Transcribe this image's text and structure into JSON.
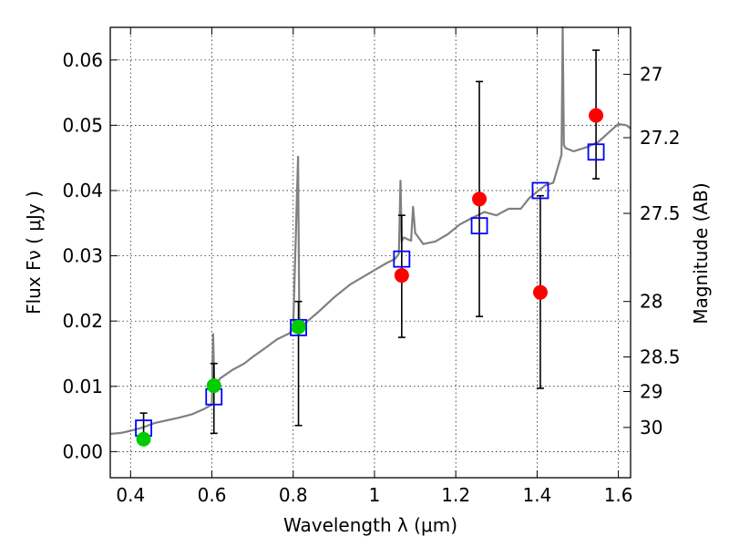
{
  "chart_data": {
    "type": "scatter",
    "xlabel": "Wavelength  λ (μm)",
    "ylabel": "Flux  Fν  ( μJy )",
    "y2label": "Magnitude (AB)",
    "xlim": [
      0.35,
      1.63
    ],
    "ylim": [
      -0.004,
      0.065
    ],
    "grid": true,
    "x_ticks": [
      0.4,
      0.6,
      0.8,
      1.0,
      1.2,
      1.4,
      1.6
    ],
    "x_tick_labels": [
      "0.4",
      "0.6",
      "0.8",
      "1",
      "1.2",
      "1.4",
      "1.6"
    ],
    "y_ticks": [
      0.0,
      0.01,
      0.02,
      0.03,
      0.04,
      0.05,
      0.06
    ],
    "y_tick_labels": [
      "0.00",
      "0.01",
      "0.02",
      "0.03",
      "0.04",
      "0.05",
      "0.06"
    ],
    "magnitude_ticks": [
      {
        "label": "27",
        "flux": 0.0578
      },
      {
        "label": "27.2",
        "flux": 0.0481
      },
      {
        "label": "27.5",
        "flux": 0.0365
      },
      {
        "label": "28",
        "flux": 0.023
      },
      {
        "label": "28.5",
        "flux": 0.0145
      },
      {
        "label": "29",
        "flux": 0.0092
      },
      {
        "label": "30",
        "flux": 0.0037
      }
    ],
    "series": [
      {
        "marker": "line",
        "color": "#808080",
        "x": [
          0.35,
          0.38,
          0.4,
          0.43,
          0.46,
          0.49,
          0.52,
          0.55,
          0.58,
          0.6,
          0.603,
          0.606,
          0.62,
          0.65,
          0.68,
          0.7,
          0.73,
          0.76,
          0.79,
          0.8,
          0.812,
          0.815,
          0.818,
          0.83,
          0.86,
          0.9,
          0.94,
          0.97,
          1.0,
          1.03,
          1.05,
          1.06,
          1.064,
          1.067,
          1.072,
          1.09,
          1.095,
          1.1,
          1.12,
          1.15,
          1.18,
          1.21,
          1.24,
          1.27,
          1.3,
          1.33,
          1.36,
          1.38,
          1.4,
          1.42,
          1.44,
          1.46,
          1.463,
          1.466,
          1.47,
          1.49,
          1.52,
          1.55,
          1.58,
          1.6,
          1.62,
          1.63
        ],
        "y": [
          0.0027,
          0.0029,
          0.0032,
          0.0037,
          0.0044,
          0.0048,
          0.0052,
          0.0057,
          0.0065,
          0.0072,
          0.018,
          0.0095,
          0.0112,
          0.0125,
          0.0135,
          0.0145,
          0.0158,
          0.0172,
          0.0181,
          0.0188,
          0.0452,
          0.0205,
          0.0195,
          0.0197,
          0.0213,
          0.0236,
          0.0256,
          0.0267,
          0.0278,
          0.0289,
          0.0295,
          0.0303,
          0.0415,
          0.0322,
          0.0328,
          0.0323,
          0.0375,
          0.0335,
          0.0318,
          0.0322,
          0.0333,
          0.0348,
          0.0358,
          0.0367,
          0.0362,
          0.0372,
          0.0372,
          0.0388,
          0.0398,
          0.0408,
          0.0412,
          0.0455,
          0.065,
          0.047,
          0.0465,
          0.046,
          0.0466,
          0.0474,
          0.0491,
          0.0502,
          0.05,
          0.0495
        ]
      },
      {
        "marker": "open-square",
        "color": "#0000ff",
        "x": [
          0.432,
          0.605,
          0.813,
          1.067,
          1.258,
          1.408,
          1.545
        ],
        "y": [
          0.0036,
          0.0084,
          0.019,
          0.0295,
          0.0346,
          0.04,
          0.0459
        ]
      },
      {
        "marker": "filled-circle",
        "color": "#00cc00",
        "x": [
          0.432,
          0.605,
          0.813
        ],
        "y": [
          0.0019,
          0.0101,
          0.0191
        ],
        "yerr_low": [
          0.0019,
          0.0028,
          0.004
        ],
        "yerr_high": [
          0.0059,
          0.0135,
          0.023
        ]
      },
      {
        "marker": "filled-circle",
        "color": "#ff0000",
        "x": [
          1.067,
          1.258,
          1.408,
          1.545
        ],
        "y": [
          0.027,
          0.0387,
          0.0244,
          0.0515
        ],
        "yerr_low": [
          0.0175,
          0.0207,
          0.0097,
          0.0418
        ],
        "yerr_high": [
          0.0362,
          0.0567,
          0.0392,
          0.0615
        ]
      }
    ]
  }
}
